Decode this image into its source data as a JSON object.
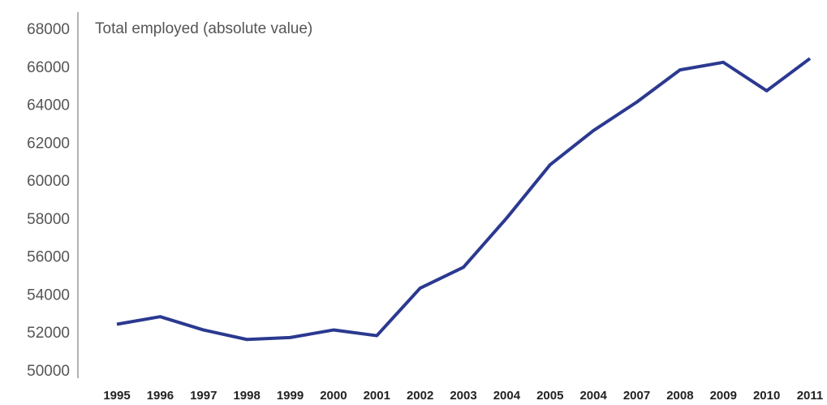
{
  "chart_data": {
    "type": "line",
    "title": "Total employed (absolute value)",
    "categories": [
      "1995",
      "1996",
      "1997",
      "1998",
      "1999",
      "2000",
      "2001",
      "2002",
      "2003",
      "2004",
      "2005",
      "2004",
      "2007",
      "2008",
      "2009",
      "2010",
      "2011"
    ],
    "series": [
      {
        "name": "Total employed",
        "color": "#2b3990",
        "values": [
          52500,
          52900,
          52200,
          51700,
          51800,
          52200,
          51900,
          54400,
          55500,
          58100,
          60900,
          62700,
          64200,
          65900,
          66300,
          64800,
          66500
        ]
      }
    ],
    "ylim": [
      50000,
      68000
    ],
    "yticks": [
      50000,
      52000,
      54000,
      56000,
      58000,
      60000,
      62000,
      64000,
      66000,
      68000
    ],
    "grid": false
  }
}
